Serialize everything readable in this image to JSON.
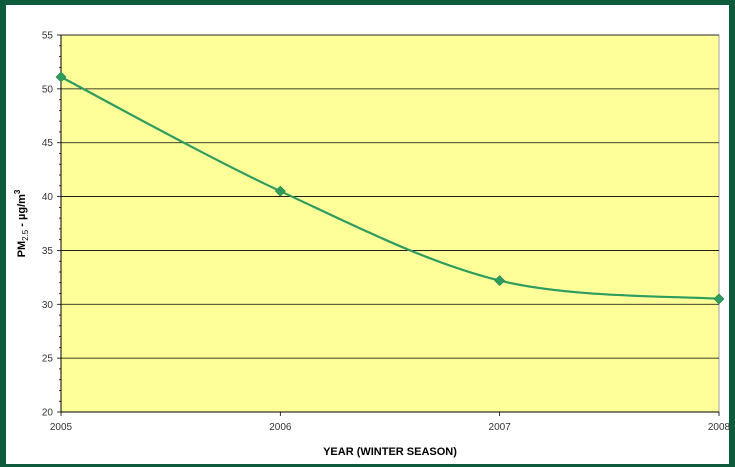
{
  "colors": {
    "page_border": "#0e5a3c",
    "chart_background": "#ffffff",
    "plot_background": "#ffff99",
    "grid_line": "#000000",
    "series_line": "#2e9b5f",
    "marker": "#2e9b5f"
  },
  "chart_data": {
    "type": "line",
    "title": "",
    "xlabel": "YEAR (WINTER SEASON)",
    "ylabel_main": "PM",
    "ylabel_sub": "2.5",
    "ylabel_rest": " - µg/m",
    "ylabel_sup": "3",
    "x": [
      2005,
      2006,
      2007,
      2008
    ],
    "x_tick_labels": [
      "2005",
      "2006",
      "2007",
      "2008"
    ],
    "y_tick_labels": [
      "20",
      "25",
      "30",
      "35",
      "40",
      "45",
      "50",
      "55"
    ],
    "xlim": [
      2005,
      2008
    ],
    "ylim": [
      20,
      55
    ],
    "y_major_step": 5,
    "y_minor_step": 1,
    "grid": "horizontal",
    "smooth_line": true,
    "marker": "diamond",
    "series": [
      {
        "values": [
          51.1,
          40.5,
          32.2,
          30.5
        ]
      }
    ]
  }
}
